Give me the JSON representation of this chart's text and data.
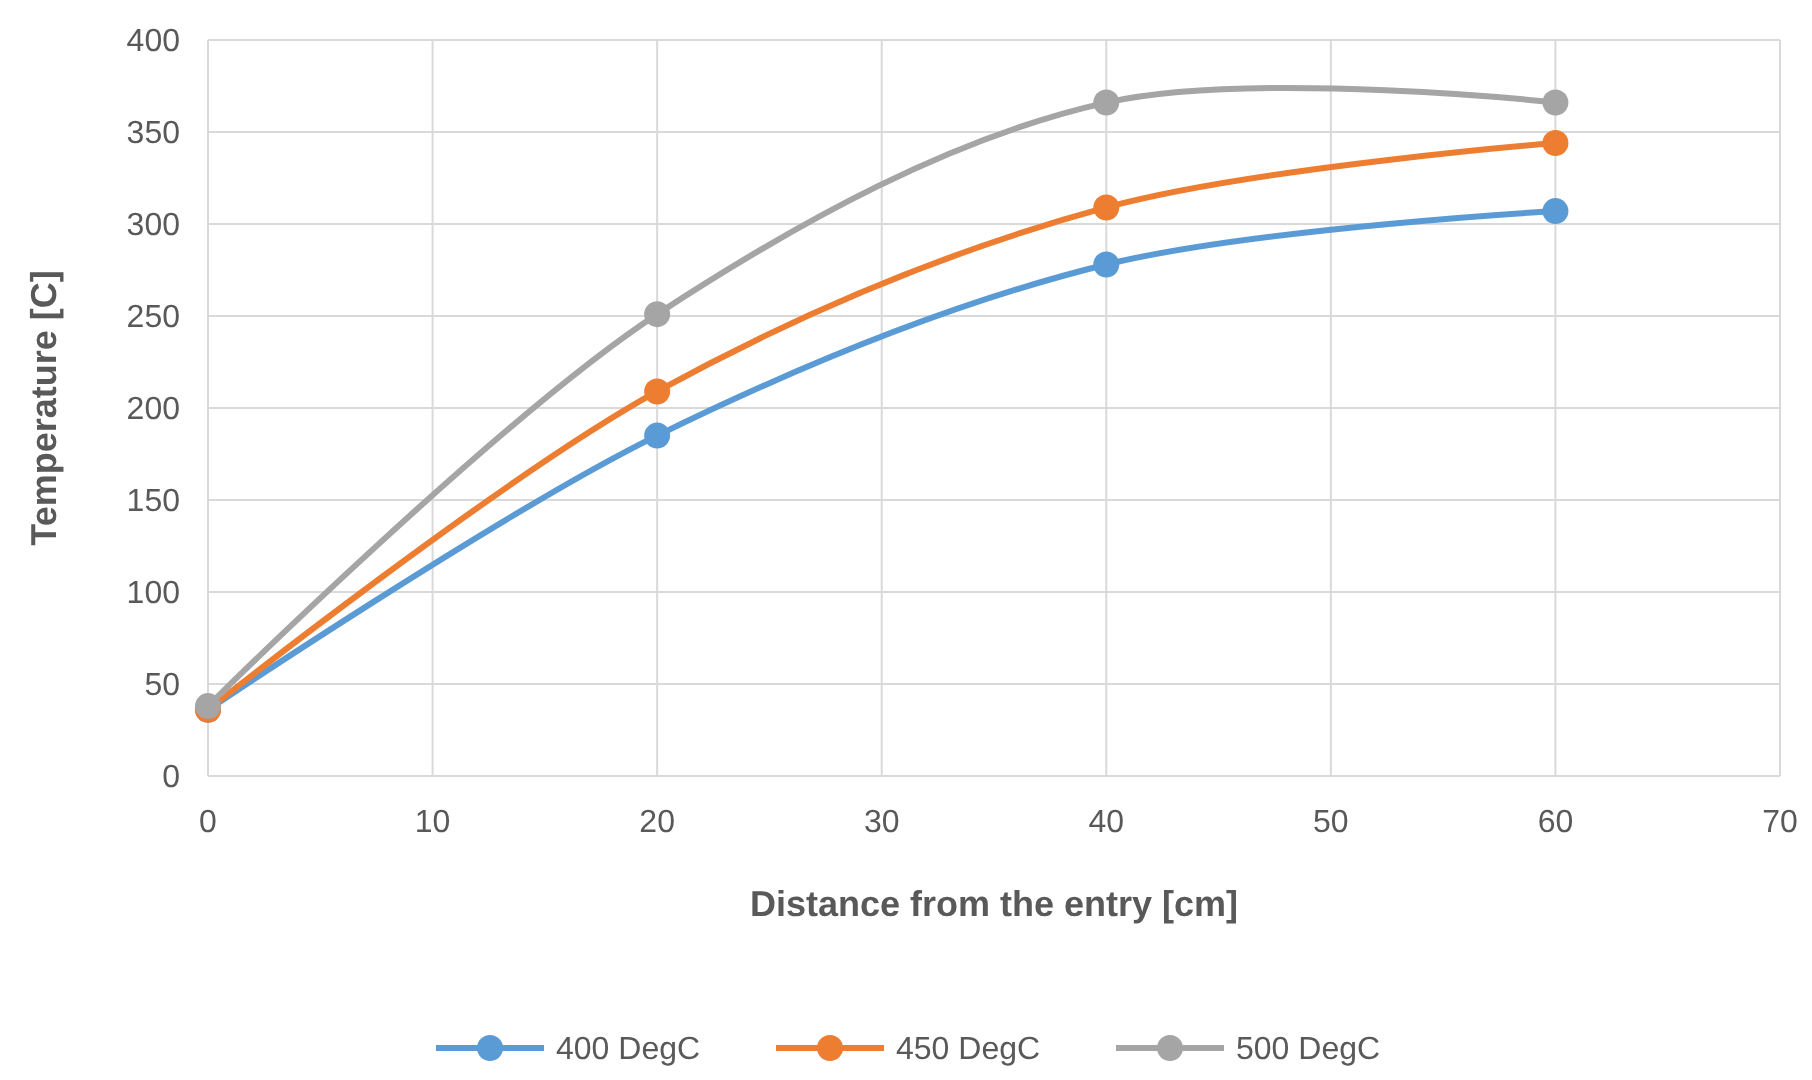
{
  "chart_data": {
    "type": "line",
    "xlabel": "Distance from the entry [cm]",
    "ylabel": "Temperature [C]",
    "x": [
      0,
      20,
      40,
      60
    ],
    "series": [
      {
        "name": "400 DegC",
        "color": "#5b9bd5",
        "values": [
          36,
          185,
          278,
          307
        ]
      },
      {
        "name": "450 DegC",
        "color": "#ed7d31",
        "values": [
          36,
          209,
          309,
          344
        ]
      },
      {
        "name": "500 DegC",
        "color": "#a5a5a5",
        "values": [
          38,
          251,
          366,
          366
        ]
      }
    ],
    "xlim": [
      0,
      70
    ],
    "xticks": [
      0,
      10,
      20,
      30,
      40,
      50,
      60,
      70
    ],
    "ylim": [
      0,
      400
    ],
    "yticks": [
      0,
      50,
      100,
      150,
      200,
      250,
      300,
      350,
      400
    ],
    "grid": true,
    "legend": "bottom",
    "marker": "circle",
    "line_style": "solid"
  }
}
